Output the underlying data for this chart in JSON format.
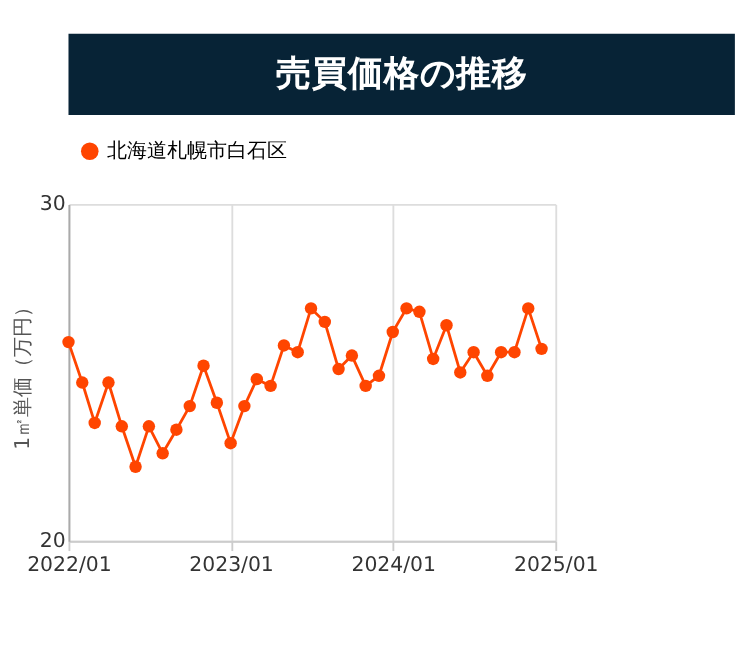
{
  "chart_data": {
    "type": "line",
    "title": "売買価格の推移",
    "ylabel": "1㎡単価（万円）",
    "x": [
      "2022-01",
      "2022-02",
      "2022-03",
      "2022-04",
      "2022-05",
      "2022-06",
      "2022-07",
      "2022-08",
      "2022-09",
      "2022-10",
      "2022-11",
      "2022-12",
      "2023-01",
      "2023-02",
      "2023-03",
      "2023-04",
      "2023-05",
      "2023-06",
      "2023-07",
      "2023-08",
      "2023-09",
      "2023-10",
      "2023-11",
      "2023-12",
      "2024-01",
      "2024-02",
      "2024-03",
      "2024-04",
      "2024-05",
      "2024-06",
      "2024-07",
      "2024-08",
      "2024-09",
      "2024-10",
      "2024-11",
      "2024-12"
    ],
    "series": [
      {
        "name": "北海道札幌市白石区",
        "color": "#ff4500",
        "values": [
          25.9,
          24.7,
          23.5,
          24.7,
          23.4,
          22.2,
          23.4,
          22.6,
          23.3,
          24.0,
          25.2,
          24.1,
          22.9,
          24.0,
          24.8,
          24.6,
          25.8,
          25.6,
          26.9,
          26.5,
          25.1,
          25.5,
          24.6,
          24.9,
          26.2,
          26.9,
          26.8,
          25.4,
          26.4,
          25.0,
          25.6,
          24.9,
          25.6,
          25.6,
          26.9,
          25.7
        ]
      }
    ],
    "xlim": [
      "2022-01",
      "2025-01"
    ],
    "xticks": [
      {
        "value": "2022-01",
        "label": "2022/01"
      },
      {
        "value": "2023-01",
        "label": "2023/01"
      },
      {
        "value": "2024-01",
        "label": "2024/01"
      },
      {
        "value": "2025-01",
        "label": "2025/01"
      }
    ],
    "ylim": [
      20,
      30
    ],
    "yticks": [
      20,
      30
    ],
    "grid": true,
    "legend": "top left",
    "marker": "circle",
    "line_style": "solid"
  }
}
